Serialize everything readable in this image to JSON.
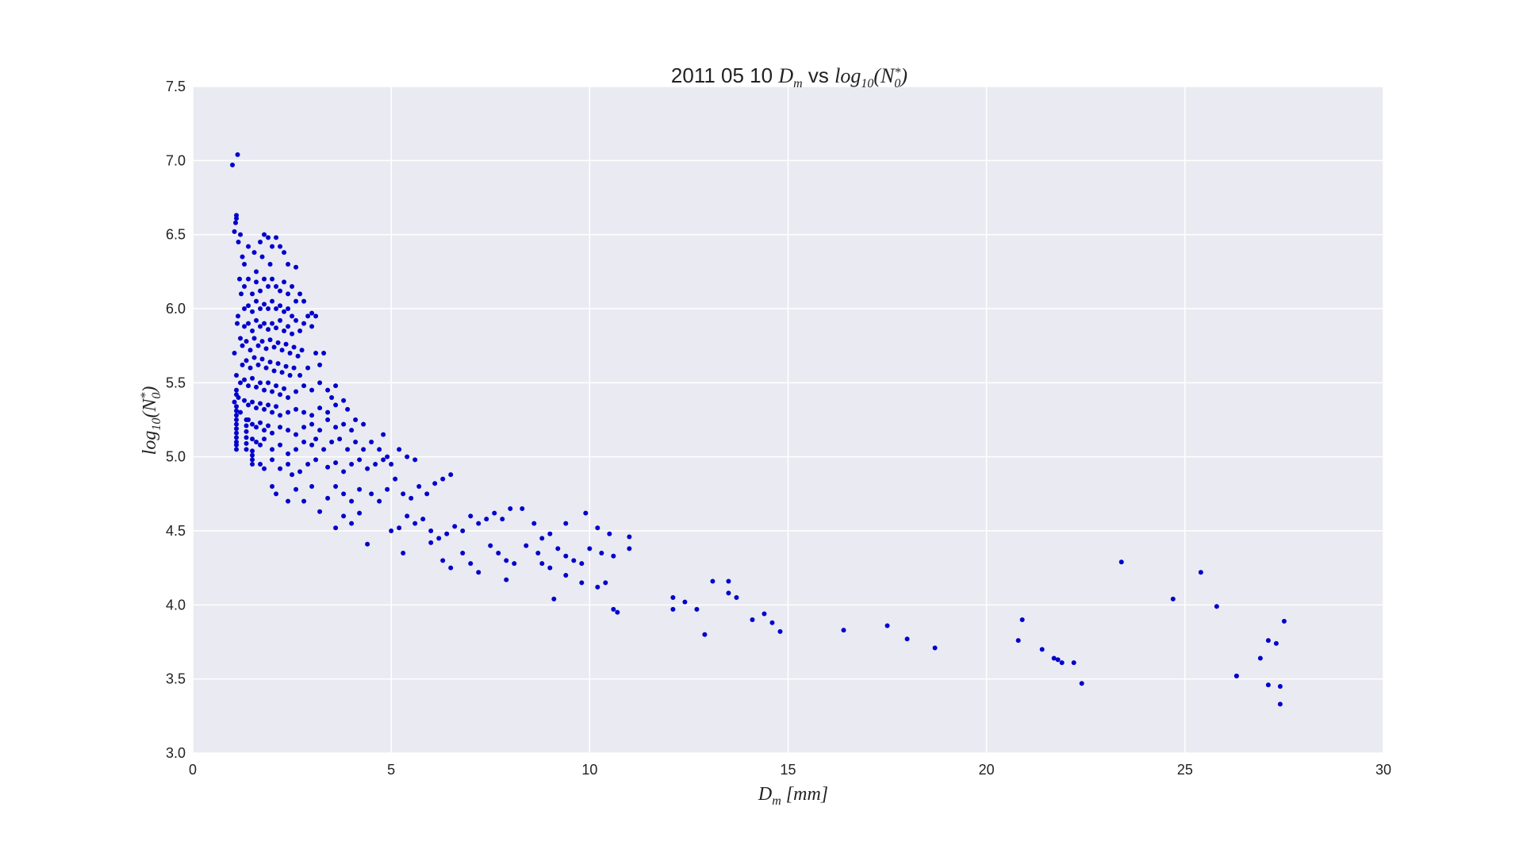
{
  "chart_data": {
    "type": "scatter",
    "title": {
      "prefix": "2011 05 10",
      "math_left": "D",
      "math_left_sub": "m",
      "joiner": "vs",
      "math_right": "log",
      "math_right_sub": "10",
      "math_right_arg": "N",
      "math_right_arg_sub": "0",
      "math_right_arg_sup": "*"
    },
    "xlabel": {
      "main": "D",
      "sub": "m",
      "unit": "[mm]"
    },
    "ylabel": {
      "main": "log",
      "sub": "10",
      "arg": "N",
      "arg_sub": "0",
      "arg_sup": "*"
    },
    "xlim": [
      0,
      30
    ],
    "ylim": [
      3.0,
      7.5
    ],
    "xticks": [
      0,
      5,
      10,
      15,
      20,
      25,
      30
    ],
    "yticks": [
      3.0,
      3.5,
      4.0,
      4.5,
      5.0,
      5.5,
      6.0,
      6.5,
      7.0,
      7.5
    ],
    "xtick_labels": [
      "0",
      "5",
      "10",
      "15",
      "20",
      "25",
      "30"
    ],
    "ytick_labels": [
      "3.0",
      "3.5",
      "4.0",
      "4.5",
      "5.0",
      "5.5",
      "6.0",
      "6.5",
      "7.0",
      "7.5"
    ],
    "grid": true,
    "colors": {
      "plot_bg": "#eaeaf2",
      "grid": "#ffffff",
      "marker": "#0000cc"
    },
    "points": [
      [
        1.0,
        6.97
      ],
      [
        1.13,
        7.04
      ],
      [
        1.05,
        6.52
      ],
      [
        1.08,
        6.58
      ],
      [
        1.1,
        6.63
      ],
      [
        1.1,
        6.61
      ],
      [
        1.15,
        6.45
      ],
      [
        1.2,
        6.5
      ],
      [
        1.25,
        6.35
      ],
      [
        1.3,
        6.3
      ],
      [
        1.18,
        6.2
      ],
      [
        1.22,
        6.1
      ],
      [
        1.12,
        5.9
      ],
      [
        1.14,
        5.95
      ],
      [
        1.2,
        5.8
      ],
      [
        1.05,
        5.7
      ],
      [
        1.1,
        5.55
      ],
      [
        1.15,
        5.4
      ],
      [
        1.05,
        5.37
      ],
      [
        1.2,
        5.3
      ],
      [
        1.1,
        5.05
      ],
      [
        1.1,
        5.08
      ],
      [
        1.1,
        5.1
      ],
      [
        1.1,
        5.13
      ],
      [
        1.1,
        5.16
      ],
      [
        1.1,
        5.19
      ],
      [
        1.1,
        5.22
      ],
      [
        1.1,
        5.25
      ],
      [
        1.1,
        5.28
      ],
      [
        1.1,
        5.31
      ],
      [
        1.1,
        5.34
      ],
      [
        1.1,
        5.42
      ],
      [
        1.1,
        5.45
      ],
      [
        1.35,
        5.05
      ],
      [
        1.35,
        5.09
      ],
      [
        1.35,
        5.13
      ],
      [
        1.35,
        5.17
      ],
      [
        1.35,
        5.21
      ],
      [
        1.35,
        5.25
      ],
      [
        1.5,
        4.95
      ],
      [
        1.5,
        4.98
      ],
      [
        1.5,
        5.01
      ],
      [
        1.5,
        5.04
      ],
      [
        1.4,
        6.42
      ],
      [
        1.55,
        6.38
      ],
      [
        1.6,
        6.25
      ],
      [
        1.7,
        6.45
      ],
      [
        1.8,
        6.5
      ],
      [
        1.9,
        6.48
      ],
      [
        2.0,
        6.42
      ],
      [
        2.1,
        6.48
      ],
      [
        2.2,
        6.42
      ],
      [
        2.3,
        6.38
      ],
      [
        2.4,
        6.3
      ],
      [
        2.6,
        6.28
      ],
      [
        1.75,
        6.35
      ],
      [
        1.95,
        6.3
      ],
      [
        1.3,
        6.15
      ],
      [
        1.4,
        6.2
      ],
      [
        1.5,
        6.1
      ],
      [
        1.6,
        6.18
      ],
      [
        1.7,
        6.12
      ],
      [
        1.8,
        6.2
      ],
      [
        1.9,
        6.15
      ],
      [
        2.0,
        6.2
      ],
      [
        2.1,
        6.15
      ],
      [
        2.2,
        6.12
      ],
      [
        2.3,
        6.18
      ],
      [
        2.4,
        6.1
      ],
      [
        2.5,
        6.15
      ],
      [
        2.6,
        6.05
      ],
      [
        2.7,
        6.1
      ],
      [
        2.8,
        6.05
      ],
      [
        2.9,
        5.95
      ],
      [
        3.0,
        5.97
      ],
      [
        3.1,
        5.95
      ],
      [
        1.3,
        6.0
      ],
      [
        1.4,
        6.02
      ],
      [
        1.5,
        5.98
      ],
      [
        1.6,
        6.05
      ],
      [
        1.7,
        6.0
      ],
      [
        1.8,
        6.03
      ],
      [
        1.9,
        6.0
      ],
      [
        2.0,
        6.05
      ],
      [
        2.1,
        6.0
      ],
      [
        2.2,
        6.02
      ],
      [
        2.3,
        5.98
      ],
      [
        2.4,
        6.0
      ],
      [
        2.5,
        5.95
      ],
      [
        2.6,
        5.92
      ],
      [
        1.3,
        5.88
      ],
      [
        1.4,
        5.9
      ],
      [
        1.5,
        5.85
      ],
      [
        1.6,
        5.92
      ],
      [
        1.7,
        5.88
      ],
      [
        1.8,
        5.9
      ],
      [
        1.9,
        5.86
      ],
      [
        2.0,
        5.9
      ],
      [
        2.1,
        5.87
      ],
      [
        2.2,
        5.92
      ],
      [
        2.3,
        5.85
      ],
      [
        2.4,
        5.88
      ],
      [
        2.5,
        5.83
      ],
      [
        2.7,
        5.85
      ],
      [
        2.8,
        5.9
      ],
      [
        3.0,
        5.88
      ],
      [
        3.1,
        5.7
      ],
      [
        1.25,
        5.75
      ],
      [
        1.35,
        5.78
      ],
      [
        1.45,
        5.72
      ],
      [
        1.55,
        5.8
      ],
      [
        1.65,
        5.75
      ],
      [
        1.75,
        5.78
      ],
      [
        1.85,
        5.73
      ],
      [
        1.95,
        5.79
      ],
      [
        2.05,
        5.74
      ],
      [
        2.15,
        5.77
      ],
      [
        2.25,
        5.72
      ],
      [
        2.35,
        5.76
      ],
      [
        2.45,
        5.7
      ],
      [
        2.55,
        5.74
      ],
      [
        2.65,
        5.68
      ],
      [
        2.75,
        5.72
      ],
      [
        1.25,
        5.62
      ],
      [
        1.35,
        5.65
      ],
      [
        1.45,
        5.6
      ],
      [
        1.55,
        5.67
      ],
      [
        1.65,
        5.62
      ],
      [
        1.75,
        5.66
      ],
      [
        1.85,
        5.6
      ],
      [
        1.95,
        5.64
      ],
      [
        2.05,
        5.58
      ],
      [
        2.15,
        5.63
      ],
      [
        2.25,
        5.57
      ],
      [
        2.35,
        5.61
      ],
      [
        2.45,
        5.55
      ],
      [
        2.55,
        5.6
      ],
      [
        2.7,
        5.55
      ],
      [
        2.9,
        5.6
      ],
      [
        3.2,
        5.62
      ],
      [
        3.3,
        5.7
      ],
      [
        1.2,
        5.5
      ],
      [
        1.3,
        5.52
      ],
      [
        1.4,
        5.48
      ],
      [
        1.5,
        5.53
      ],
      [
        1.6,
        5.47
      ],
      [
        1.7,
        5.5
      ],
      [
        1.8,
        5.45
      ],
      [
        1.9,
        5.5
      ],
      [
        2.0,
        5.44
      ],
      [
        2.1,
        5.48
      ],
      [
        2.2,
        5.42
      ],
      [
        2.3,
        5.46
      ],
      [
        2.4,
        5.4
      ],
      [
        2.6,
        5.44
      ],
      [
        2.8,
        5.48
      ],
      [
        3.0,
        5.45
      ],
      [
        3.2,
        5.5
      ],
      [
        3.4,
        5.45
      ],
      [
        3.5,
        5.4
      ],
      [
        3.6,
        5.48
      ],
      [
        1.3,
        5.38
      ],
      [
        1.4,
        5.35
      ],
      [
        1.5,
        5.37
      ],
      [
        1.6,
        5.33
      ],
      [
        1.7,
        5.36
      ],
      [
        1.8,
        5.32
      ],
      [
        1.9,
        5.35
      ],
      [
        2.0,
        5.3
      ],
      [
        2.1,
        5.34
      ],
      [
        2.2,
        5.28
      ],
      [
        2.4,
        5.3
      ],
      [
        2.6,
        5.32
      ],
      [
        2.8,
        5.3
      ],
      [
        3.0,
        5.28
      ],
      [
        3.2,
        5.33
      ],
      [
        3.4,
        5.3
      ],
      [
        3.6,
        5.35
      ],
      [
        3.8,
        5.38
      ],
      [
        3.9,
        5.32
      ],
      [
        1.4,
        5.25
      ],
      [
        1.5,
        5.22
      ],
      [
        1.6,
        5.2
      ],
      [
        1.7,
        5.23
      ],
      [
        1.8,
        5.18
      ],
      [
        1.9,
        5.21
      ],
      [
        2.0,
        5.16
      ],
      [
        2.2,
        5.2
      ],
      [
        2.4,
        5.18
      ],
      [
        2.6,
        5.15
      ],
      [
        2.8,
        5.2
      ],
      [
        3.0,
        5.22
      ],
      [
        3.2,
        5.18
      ],
      [
        3.4,
        5.25
      ],
      [
        3.6,
        5.2
      ],
      [
        3.8,
        5.22
      ],
      [
        4.0,
        5.18
      ],
      [
        4.1,
        5.25
      ],
      [
        4.3,
        5.22
      ],
      [
        1.5,
        5.12
      ],
      [
        1.6,
        5.1
      ],
      [
        1.7,
        5.08
      ],
      [
        1.8,
        5.12
      ],
      [
        2.0,
        5.05
      ],
      [
        2.2,
        5.08
      ],
      [
        2.4,
        5.02
      ],
      [
        2.6,
        5.05
      ],
      [
        2.8,
        5.1
      ],
      [
        3.0,
        5.08
      ],
      [
        3.1,
        5.12
      ],
      [
        3.3,
        5.05
      ],
      [
        3.5,
        5.1
      ],
      [
        3.7,
        5.12
      ],
      [
        3.9,
        5.05
      ],
      [
        4.1,
        5.1
      ],
      [
        4.3,
        5.05
      ],
      [
        4.5,
        5.1
      ],
      [
        4.7,
        5.05
      ],
      [
        4.8,
        5.15
      ],
      [
        4.9,
        5.0
      ],
      [
        1.7,
        4.95
      ],
      [
        1.8,
        4.92
      ],
      [
        2.0,
        4.98
      ],
      [
        2.2,
        4.92
      ],
      [
        2.4,
        4.95
      ],
      [
        2.5,
        4.88
      ],
      [
        2.7,
        4.9
      ],
      [
        2.9,
        4.95
      ],
      [
        3.1,
        4.98
      ],
      [
        3.4,
        4.93
      ],
      [
        3.6,
        4.96
      ],
      [
        3.8,
        4.9
      ],
      [
        4.0,
        4.95
      ],
      [
        4.2,
        4.98
      ],
      [
        4.4,
        4.92
      ],
      [
        4.6,
        4.95
      ],
      [
        4.8,
        4.98
      ],
      [
        5.0,
        4.95
      ],
      [
        5.2,
        5.05
      ],
      [
        5.4,
        5.0
      ],
      [
        5.6,
        4.98
      ],
      [
        2.0,
        4.8
      ],
      [
        2.1,
        4.75
      ],
      [
        2.4,
        4.7
      ],
      [
        2.6,
        4.78
      ],
      [
        2.8,
        4.7
      ],
      [
        3.0,
        4.8
      ],
      [
        3.2,
        4.63
      ],
      [
        3.4,
        4.72
      ],
      [
        3.6,
        4.8
      ],
      [
        3.8,
        4.75
      ],
      [
        4.0,
        4.7
      ],
      [
        4.2,
        4.78
      ],
      [
        4.5,
        4.75
      ],
      [
        4.7,
        4.7
      ],
      [
        4.9,
        4.78
      ],
      [
        5.1,
        4.85
      ],
      [
        5.3,
        4.75
      ],
      [
        5.5,
        4.72
      ],
      [
        5.7,
        4.8
      ],
      [
        5.9,
        4.75
      ],
      [
        6.1,
        4.82
      ],
      [
        6.3,
        4.85
      ],
      [
        6.5,
        4.88
      ],
      [
        3.6,
        4.52
      ],
      [
        3.8,
        4.6
      ],
      [
        4.0,
        4.55
      ],
      [
        4.2,
        4.62
      ],
      [
        4.4,
        4.41
      ],
      [
        5.0,
        4.5
      ],
      [
        5.2,
        4.52
      ],
      [
        5.4,
        4.6
      ],
      [
        5.6,
        4.55
      ],
      [
        5.8,
        4.58
      ],
      [
        6.0,
        4.5
      ],
      [
        6.2,
        4.45
      ],
      [
        6.4,
        4.48
      ],
      [
        6.6,
        4.53
      ],
      [
        6.8,
        4.5
      ],
      [
        7.0,
        4.6
      ],
      [
        7.2,
        4.55
      ],
      [
        7.4,
        4.58
      ],
      [
        7.6,
        4.62
      ],
      [
        7.8,
        4.58
      ],
      [
        8.0,
        4.65
      ],
      [
        8.3,
        4.65
      ],
      [
        8.6,
        4.55
      ],
      [
        8.8,
        4.45
      ],
      [
        9.0,
        4.48
      ],
      [
        9.4,
        4.55
      ],
      [
        9.9,
        4.62
      ],
      [
        10.2,
        4.52
      ],
      [
        10.5,
        4.48
      ],
      [
        11.0,
        4.46
      ],
      [
        5.3,
        4.35
      ],
      [
        6.0,
        4.42
      ],
      [
        6.3,
        4.3
      ],
      [
        6.5,
        4.25
      ],
      [
        6.8,
        4.35
      ],
      [
        7.0,
        4.28
      ],
      [
        7.2,
        4.22
      ],
      [
        7.5,
        4.4
      ],
      [
        7.7,
        4.35
      ],
      [
        7.9,
        4.3
      ],
      [
        8.1,
        4.28
      ],
      [
        8.4,
        4.4
      ],
      [
        8.7,
        4.35
      ],
      [
        8.8,
        4.28
      ],
      [
        9.0,
        4.25
      ],
      [
        9.2,
        4.38
      ],
      [
        9.4,
        4.33
      ],
      [
        9.6,
        4.3
      ],
      [
        9.8,
        4.28
      ],
      [
        10.0,
        4.38
      ],
      [
        10.3,
        4.35
      ],
      [
        10.6,
        4.33
      ],
      [
        11.0,
        4.38
      ],
      [
        7.9,
        4.17
      ],
      [
        9.1,
        4.04
      ],
      [
        9.4,
        4.2
      ],
      [
        9.8,
        4.15
      ],
      [
        10.2,
        4.12
      ],
      [
        10.4,
        4.15
      ],
      [
        10.6,
        3.97
      ],
      [
        10.7,
        3.95
      ],
      [
        12.1,
        4.05
      ],
      [
        12.1,
        3.97
      ],
      [
        12.4,
        4.02
      ],
      [
        12.7,
        3.97
      ],
      [
        12.9,
        3.8
      ],
      [
        13.1,
        4.16
      ],
      [
        13.5,
        4.16
      ],
      [
        13.5,
        4.08
      ],
      [
        13.7,
        4.05
      ],
      [
        14.1,
        3.9
      ],
      [
        14.4,
        3.94
      ],
      [
        14.6,
        3.88
      ],
      [
        14.8,
        3.82
      ],
      [
        16.4,
        3.83
      ],
      [
        17.5,
        3.86
      ],
      [
        18.0,
        3.77
      ],
      [
        18.7,
        3.71
      ],
      [
        20.8,
        3.76
      ],
      [
        20.9,
        3.9
      ],
      [
        21.4,
        3.7
      ],
      [
        21.7,
        3.64
      ],
      [
        21.8,
        3.63
      ],
      [
        21.9,
        3.61
      ],
      [
        22.2,
        3.61
      ],
      [
        22.4,
        3.47
      ],
      [
        23.4,
        4.29
      ],
      [
        24.7,
        4.04
      ],
      [
        25.4,
        4.22
      ],
      [
        25.8,
        3.99
      ],
      [
        26.3,
        3.52
      ],
      [
        26.3,
        3.52
      ],
      [
        26.9,
        3.64
      ],
      [
        27.1,
        3.76
      ],
      [
        27.1,
        3.46
      ],
      [
        27.3,
        3.74
      ],
      [
        27.4,
        3.45
      ],
      [
        27.4,
        3.33
      ],
      [
        27.5,
        3.89
      ]
    ]
  }
}
